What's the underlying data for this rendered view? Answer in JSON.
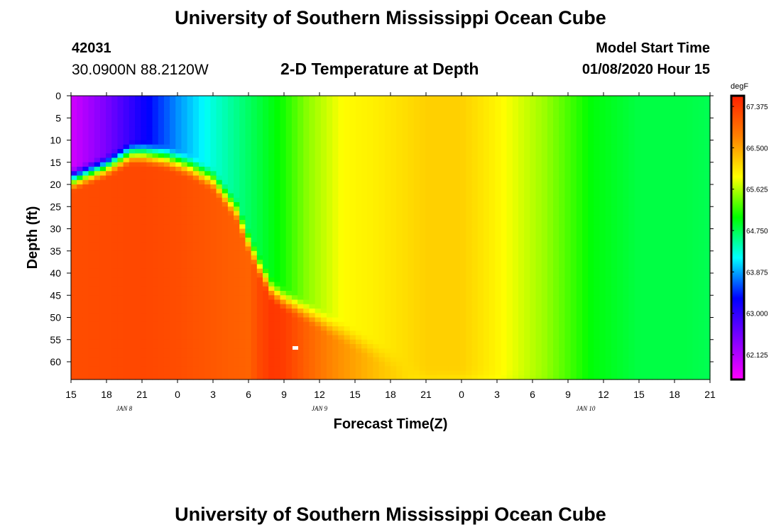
{
  "header": {
    "title": "University of Southern Mississippi Ocean Cube",
    "station_id": "42031",
    "location": "30.0900N 88.2120W",
    "subtitle": "2-D Temperature at Depth",
    "model_label": "Model Start Time",
    "model_time": "01/08/2020 Hour 15"
  },
  "footer": {
    "title": "University of Southern Mississippi Ocean Cube"
  },
  "chart_data": {
    "type": "heatmap",
    "title": "2-D Temperature at Depth",
    "xlabel": "Forecast Time(Z)",
    "ylabel": "Depth (ft)",
    "x_tick_labels": [
      "15",
      "18",
      "21",
      "0",
      "3",
      "6",
      "9",
      "12",
      "15",
      "18",
      "21",
      "0",
      "3",
      "6",
      "9",
      "12",
      "15",
      "18",
      "21"
    ],
    "date_labels": [
      {
        "label": "JAN 8",
        "tick_index": 1.5
      },
      {
        "label": "JAN 9",
        "tick_index": 7
      },
      {
        "label": "JAN 10",
        "tick_index": 14.5
      }
    ],
    "y_ticks": [
      0,
      5,
      10,
      15,
      20,
      25,
      30,
      35,
      40,
      45,
      50,
      55,
      60
    ],
    "ylim": [
      0,
      64
    ],
    "x_hours_range": [
      0,
      54
    ],
    "colorbar": {
      "unit": "degF",
      "range": [
        61.6,
        67.6
      ],
      "tick_values": [
        62.125,
        63.0,
        63.875,
        64.75,
        65.625,
        66.5,
        67.375
      ],
      "tick_labels": [
        "62.125",
        "63.000",
        "63.875",
        "64.750",
        "65.625",
        "66.500",
        "67.375"
      ],
      "colors": [
        "#ff00ff",
        "#8000ff",
        "#0000ff",
        "#00ffff",
        "#00ff00",
        "#ffff00",
        "#ff8000",
        "#ff2000"
      ]
    },
    "surface_layer_profile": {
      "hours": [
        0,
        3,
        6,
        9,
        12,
        15,
        18,
        20,
        23,
        26,
        30,
        33,
        36,
        40,
        44,
        48,
        52,
        54
      ],
      "temps": [
        61.9,
        62.5,
        63.2,
        63.8,
        64.3,
        64.7,
        65.1,
        65.5,
        65.9,
        66.0,
        66.2,
        66.2,
        65.95,
        65.55,
        65.0,
        64.8,
        64.8,
        64.75
      ]
    },
    "deep_layer_profile": {
      "hours": [
        0,
        6,
        9,
        12,
        15,
        16,
        17,
        18,
        20,
        22,
        24,
        26,
        28,
        30,
        33,
        36,
        40,
        44,
        48,
        54
      ],
      "temps": [
        67.2,
        67.25,
        67.2,
        67.1,
        67.0,
        67.25,
        67.4,
        67.35,
        67.0,
        66.7,
        66.5,
        66.3,
        66.15,
        66.0,
        65.95,
        65.85,
        65.5,
        65.0,
        64.8,
        64.75
      ]
    },
    "thermocline_depth_profile": {
      "hours": [
        0,
        3,
        5,
        6,
        8,
        10,
        12,
        14,
        15,
        16,
        17,
        18,
        20,
        22,
        24,
        26,
        28,
        30,
        54
      ],
      "depth_ft": [
        19,
        16,
        13,
        13,
        14,
        16,
        19,
        26,
        33,
        39,
        44,
        46,
        49,
        52,
        55,
        58,
        61,
        64,
        64
      ]
    },
    "thermocline_thickness_ft": 3
  }
}
